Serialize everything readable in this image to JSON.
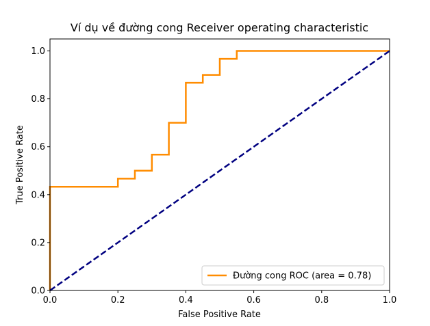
{
  "chart_data": {
    "type": "line",
    "title": "Ví dụ về đường cong Receiver operating characteristic",
    "xlabel": "False Positive Rate",
    "ylabel": "True Positive Rate",
    "xlim": [
      0,
      1
    ],
    "ylim": [
      0,
      1.05
    ],
    "xticks": [
      0,
      0.2,
      0.4,
      0.6,
      0.8,
      1.0
    ],
    "yticks": [
      0,
      0.2,
      0.4,
      0.6,
      0.8,
      1.0
    ],
    "xtick_labels": [
      "0.0",
      "0.2",
      "0.4",
      "0.6",
      "0.8",
      "1.0"
    ],
    "ytick_labels": [
      "0.0",
      "0.2",
      "0.4",
      "0.6",
      "0.8",
      "1.0"
    ],
    "grid": false,
    "legend_position": "lower-right",
    "series": [
      {
        "name": "Đường cong ROC (area = 0.78)",
        "color": "#ff8c00",
        "style": "solid",
        "points": [
          [
            0,
            0
          ],
          [
            0,
            0.433
          ],
          [
            0.2,
            0.433
          ],
          [
            0.2,
            0.467
          ],
          [
            0.25,
            0.467
          ],
          [
            0.25,
            0.5
          ],
          [
            0.3,
            0.5
          ],
          [
            0.3,
            0.567
          ],
          [
            0.35,
            0.567
          ],
          [
            0.35,
            0.7
          ],
          [
            0.4,
            0.7
          ],
          [
            0.4,
            0.867
          ],
          [
            0.45,
            0.867
          ],
          [
            0.45,
            0.9
          ],
          [
            0.5,
            0.9
          ],
          [
            0.5,
            0.967
          ],
          [
            0.55,
            0.967
          ],
          [
            0.55,
            1.0
          ],
          [
            1.0,
            1.0
          ]
        ]
      },
      {
        "name": "",
        "color": "#000080",
        "style": "dashed",
        "points": [
          [
            0,
            0
          ],
          [
            1,
            1
          ]
        ]
      }
    ]
  }
}
